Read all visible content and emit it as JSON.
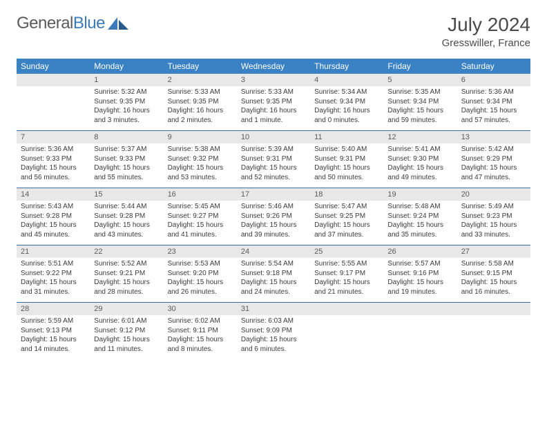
{
  "logo": {
    "text1": "General",
    "text2": "Blue"
  },
  "title": "July 2024",
  "subtitle": "Gresswiller, France",
  "colors": {
    "header_bg": "#3a82c4",
    "header_text": "#ffffff",
    "daynum_bg": "#e8e8e8",
    "row_border": "#3a6a9a",
    "logo_gray": "#5a5a5a",
    "logo_blue": "#3a7ab8"
  },
  "weekdays": [
    "Sunday",
    "Monday",
    "Tuesday",
    "Wednesday",
    "Thursday",
    "Friday",
    "Saturday"
  ],
  "weeks": [
    [
      null,
      {
        "n": "1",
        "sr": "Sunrise: 5:32 AM",
        "ss": "Sunset: 9:35 PM",
        "dl": "Daylight: 16 hours and 3 minutes."
      },
      {
        "n": "2",
        "sr": "Sunrise: 5:33 AM",
        "ss": "Sunset: 9:35 PM",
        "dl": "Daylight: 16 hours and 2 minutes."
      },
      {
        "n": "3",
        "sr": "Sunrise: 5:33 AM",
        "ss": "Sunset: 9:35 PM",
        "dl": "Daylight: 16 hours and 1 minute."
      },
      {
        "n": "4",
        "sr": "Sunrise: 5:34 AM",
        "ss": "Sunset: 9:34 PM",
        "dl": "Daylight: 16 hours and 0 minutes."
      },
      {
        "n": "5",
        "sr": "Sunrise: 5:35 AM",
        "ss": "Sunset: 9:34 PM",
        "dl": "Daylight: 15 hours and 59 minutes."
      },
      {
        "n": "6",
        "sr": "Sunrise: 5:36 AM",
        "ss": "Sunset: 9:34 PM",
        "dl": "Daylight: 15 hours and 57 minutes."
      }
    ],
    [
      {
        "n": "7",
        "sr": "Sunrise: 5:36 AM",
        "ss": "Sunset: 9:33 PM",
        "dl": "Daylight: 15 hours and 56 minutes."
      },
      {
        "n": "8",
        "sr": "Sunrise: 5:37 AM",
        "ss": "Sunset: 9:33 PM",
        "dl": "Daylight: 15 hours and 55 minutes."
      },
      {
        "n": "9",
        "sr": "Sunrise: 5:38 AM",
        "ss": "Sunset: 9:32 PM",
        "dl": "Daylight: 15 hours and 53 minutes."
      },
      {
        "n": "10",
        "sr": "Sunrise: 5:39 AM",
        "ss": "Sunset: 9:31 PM",
        "dl": "Daylight: 15 hours and 52 minutes."
      },
      {
        "n": "11",
        "sr": "Sunrise: 5:40 AM",
        "ss": "Sunset: 9:31 PM",
        "dl": "Daylight: 15 hours and 50 minutes."
      },
      {
        "n": "12",
        "sr": "Sunrise: 5:41 AM",
        "ss": "Sunset: 9:30 PM",
        "dl": "Daylight: 15 hours and 49 minutes."
      },
      {
        "n": "13",
        "sr": "Sunrise: 5:42 AM",
        "ss": "Sunset: 9:29 PM",
        "dl": "Daylight: 15 hours and 47 minutes."
      }
    ],
    [
      {
        "n": "14",
        "sr": "Sunrise: 5:43 AM",
        "ss": "Sunset: 9:28 PM",
        "dl": "Daylight: 15 hours and 45 minutes."
      },
      {
        "n": "15",
        "sr": "Sunrise: 5:44 AM",
        "ss": "Sunset: 9:28 PM",
        "dl": "Daylight: 15 hours and 43 minutes."
      },
      {
        "n": "16",
        "sr": "Sunrise: 5:45 AM",
        "ss": "Sunset: 9:27 PM",
        "dl": "Daylight: 15 hours and 41 minutes."
      },
      {
        "n": "17",
        "sr": "Sunrise: 5:46 AM",
        "ss": "Sunset: 9:26 PM",
        "dl": "Daylight: 15 hours and 39 minutes."
      },
      {
        "n": "18",
        "sr": "Sunrise: 5:47 AM",
        "ss": "Sunset: 9:25 PM",
        "dl": "Daylight: 15 hours and 37 minutes."
      },
      {
        "n": "19",
        "sr": "Sunrise: 5:48 AM",
        "ss": "Sunset: 9:24 PM",
        "dl": "Daylight: 15 hours and 35 minutes."
      },
      {
        "n": "20",
        "sr": "Sunrise: 5:49 AM",
        "ss": "Sunset: 9:23 PM",
        "dl": "Daylight: 15 hours and 33 minutes."
      }
    ],
    [
      {
        "n": "21",
        "sr": "Sunrise: 5:51 AM",
        "ss": "Sunset: 9:22 PM",
        "dl": "Daylight: 15 hours and 31 minutes."
      },
      {
        "n": "22",
        "sr": "Sunrise: 5:52 AM",
        "ss": "Sunset: 9:21 PM",
        "dl": "Daylight: 15 hours and 28 minutes."
      },
      {
        "n": "23",
        "sr": "Sunrise: 5:53 AM",
        "ss": "Sunset: 9:20 PM",
        "dl": "Daylight: 15 hours and 26 minutes."
      },
      {
        "n": "24",
        "sr": "Sunrise: 5:54 AM",
        "ss": "Sunset: 9:18 PM",
        "dl": "Daylight: 15 hours and 24 minutes."
      },
      {
        "n": "25",
        "sr": "Sunrise: 5:55 AM",
        "ss": "Sunset: 9:17 PM",
        "dl": "Daylight: 15 hours and 21 minutes."
      },
      {
        "n": "26",
        "sr": "Sunrise: 5:57 AM",
        "ss": "Sunset: 9:16 PM",
        "dl": "Daylight: 15 hours and 19 minutes."
      },
      {
        "n": "27",
        "sr": "Sunrise: 5:58 AM",
        "ss": "Sunset: 9:15 PM",
        "dl": "Daylight: 15 hours and 16 minutes."
      }
    ],
    [
      {
        "n": "28",
        "sr": "Sunrise: 5:59 AM",
        "ss": "Sunset: 9:13 PM",
        "dl": "Daylight: 15 hours and 14 minutes."
      },
      {
        "n": "29",
        "sr": "Sunrise: 6:01 AM",
        "ss": "Sunset: 9:12 PM",
        "dl": "Daylight: 15 hours and 11 minutes."
      },
      {
        "n": "30",
        "sr": "Sunrise: 6:02 AM",
        "ss": "Sunset: 9:11 PM",
        "dl": "Daylight: 15 hours and 8 minutes."
      },
      {
        "n": "31",
        "sr": "Sunrise: 6:03 AM",
        "ss": "Sunset: 9:09 PM",
        "dl": "Daylight: 15 hours and 6 minutes."
      },
      null,
      null,
      null
    ]
  ]
}
